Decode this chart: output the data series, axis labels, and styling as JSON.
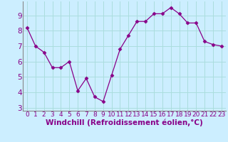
{
  "x": [
    0,
    1,
    2,
    3,
    4,
    5,
    6,
    7,
    8,
    9,
    10,
    11,
    12,
    13,
    14,
    15,
    16,
    17,
    18,
    19,
    20,
    21,
    22,
    23
  ],
  "y": [
    8.2,
    7.0,
    6.6,
    5.6,
    5.6,
    6.0,
    4.1,
    4.9,
    3.7,
    3.4,
    5.1,
    6.8,
    7.7,
    8.6,
    8.6,
    9.1,
    9.1,
    9.5,
    9.1,
    8.5,
    8.5,
    7.3,
    7.1,
    7.0
  ],
  "line_color": "#880088",
  "marker": "D",
  "marker_size": 2.5,
  "bg_color": "#cceeff",
  "grid_color": "#aadddd",
  "xlabel": "Windchill (Refroidissement éolien,°C)",
  "ylabel": "",
  "title": "",
  "xlim": [
    -0.5,
    23.5
  ],
  "ylim": [
    2.8,
    9.9
  ],
  "yticks": [
    3,
    4,
    5,
    6,
    7,
    8,
    9
  ],
  "xticks": [
    0,
    1,
    2,
    3,
    4,
    5,
    6,
    7,
    8,
    9,
    10,
    11,
    12,
    13,
    14,
    15,
    16,
    17,
    18,
    19,
    20,
    21,
    22,
    23
  ],
  "tick_fontsize": 6.5,
  "xlabel_fontsize": 7.5,
  "label_color": "#880088",
  "spine_color": "#888888"
}
